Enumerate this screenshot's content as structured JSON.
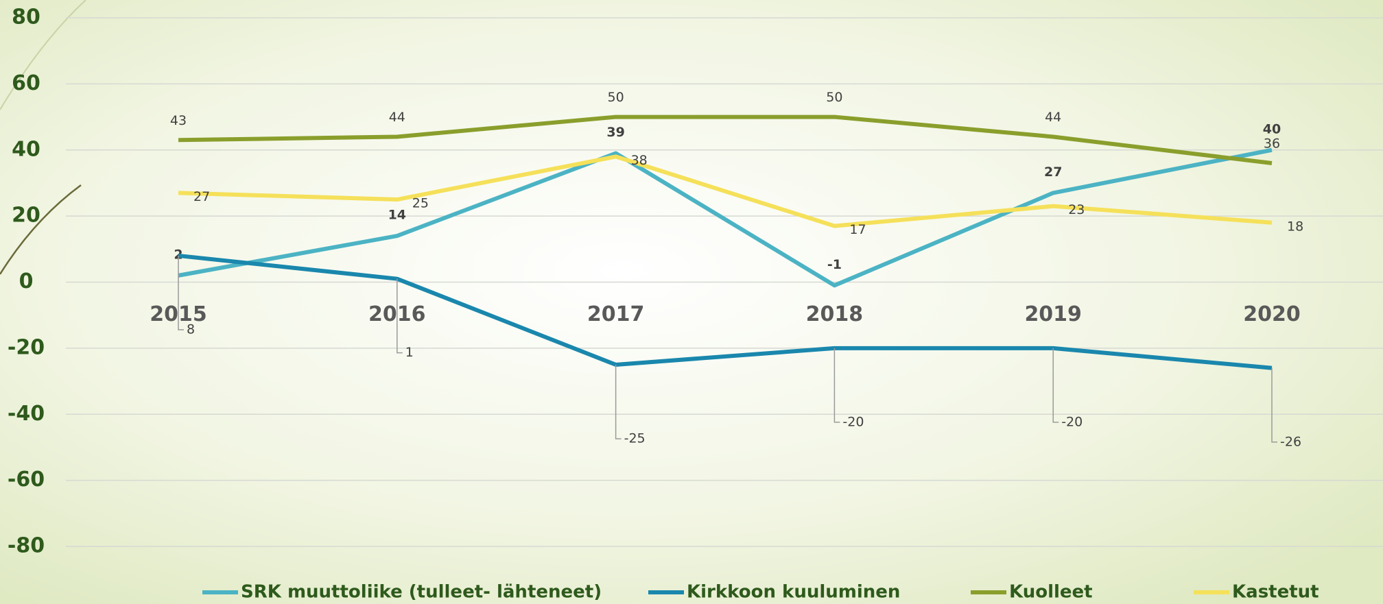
{
  "chart_data": {
    "type": "line",
    "categories": [
      "2015",
      "2016",
      "2017",
      "2018",
      "2019",
      "2020"
    ],
    "series": [
      {
        "name": "SRK muuttoliike (tulleet- lähteneet)",
        "color": "#4bb3c4",
        "values": [
          2,
          14,
          39,
          -1,
          27,
          40
        ]
      },
      {
        "name": "Kirkkoon kuuluminen",
        "color": "#1a87ad",
        "values": [
          8,
          1,
          -25,
          -20,
          -20,
          -26
        ]
      },
      {
        "name": "Kuolleet",
        "color": "#8a9e2c",
        "values": [
          43,
          44,
          50,
          50,
          44,
          36
        ]
      },
      {
        "name": "Kastetut",
        "color": "#f5e05a",
        "values": [
          27,
          25,
          38,
          17,
          23,
          18
        ]
      }
    ],
    "ylim": [
      -80,
      80
    ],
    "yticks": [
      -80,
      -60,
      -40,
      -20,
      0,
      20,
      40,
      60,
      80
    ],
    "grid": true,
    "legend": "bottom"
  }
}
